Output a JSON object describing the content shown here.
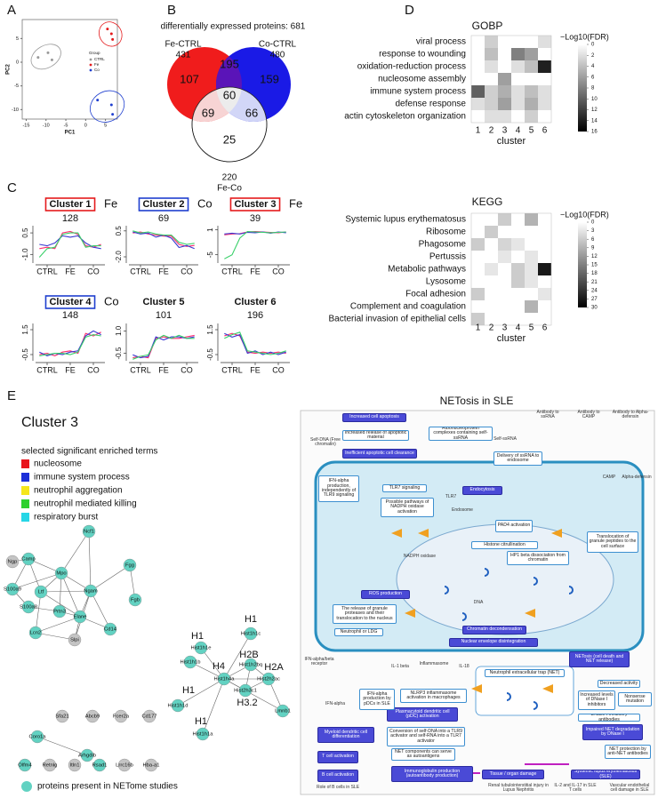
{
  "panels": [
    "A",
    "B",
    "C",
    "D",
    "E"
  ],
  "chart_data": [
    {
      "type": "scatter",
      "x_label": "PC1",
      "y_label": "PC2",
      "legend_title": "Group",
      "xlim": [
        -16,
        8
      ],
      "ylim": [
        -12,
        9
      ],
      "xticks": [
        -15,
        -10,
        -5,
        0,
        5
      ],
      "yticks": [
        -10,
        -5,
        0,
        5
      ],
      "series": [
        {
          "name": "CTRL",
          "color": "#999999",
          "x": [
            -12,
            -9.5,
            -8.5
          ],
          "y": [
            1,
            2,
            0.5
          ]
        },
        {
          "name": "Fe",
          "color": "#e41a1c",
          "x": [
            5.5,
            6.5,
            6.8
          ],
          "y": [
            7,
            6,
            4.8
          ]
        },
        {
          "name": "Co",
          "color": "#1f3fcf",
          "x": [
            3,
            6.5,
            6.8
          ],
          "y": [
            -8,
            -9,
            -11
          ]
        }
      ]
    },
    {
      "type": "venn",
      "title": "differentially expressed proteins: 681",
      "sets": [
        {
          "name": "Fe-CTRL",
          "total": 431,
          "color": "#f01c1c"
        },
        {
          "name": "Co-CTRL",
          "total": 480,
          "color": "#1a1ae6"
        },
        {
          "name": "Fe-Co",
          "total": 220,
          "color": "#ffffff"
        }
      ],
      "regions": [
        107,
        195,
        159,
        60,
        69,
        66,
        25
      ]
    },
    {
      "type": "line",
      "title": "Cluster 1",
      "tag": "Fe",
      "box_color": "#e41a1c",
      "count": 128,
      "categories": [
        null,
        "CTRL",
        null,
        null,
        "FE",
        null,
        null,
        "CO",
        null
      ],
      "ylim": [
        -1.6,
        1.0
      ],
      "yticks": [
        {
          "value": -1,
          "label": "-1.0"
        },
        0.5
      ],
      "series": [
        {
          "color": "#ff2d6f",
          "values": [
            -0.6,
            -0.5,
            -0.6,
            0.5,
            0.6,
            0.4,
            -0.4,
            -0.5,
            -0.3
          ]
        },
        {
          "color": "#3a3ad0",
          "values": [
            -0.3,
            -0.4,
            -0.2,
            0.3,
            0.2,
            0.3,
            -0.2,
            -0.5,
            -0.6
          ]
        },
        {
          "color": "#3ad06a",
          "values": [
            -1.2,
            -0.6,
            -0.5,
            0.4,
            0.5,
            0.5,
            -0.5,
            -0.4,
            -0.4
          ]
        }
      ]
    },
    {
      "type": "line",
      "title": "Cluster 2",
      "tag": "Co",
      "box_color": "#1f3fcf",
      "count": 69,
      "categories": [
        null,
        "CTRL",
        null,
        null,
        "FE",
        null,
        null,
        "CO",
        null
      ],
      "ylim": [
        -2.6,
        1.0
      ],
      "yticks": [
        0.5,
        {
          "value": -2,
          "label": "-2.0"
        }
      ],
      "series": [
        {
          "color": "#ff2d6f",
          "values": [
            0.3,
            0.4,
            0.2,
            0.1,
            0,
            0,
            -0.8,
            -1,
            -0.9
          ]
        },
        {
          "color": "#3a3ad0",
          "values": [
            0.4,
            0.2,
            0.3,
            -0.1,
            0.1,
            -0.2,
            -1.1,
            -0.9,
            -1.2
          ]
        },
        {
          "color": "#3ad06a",
          "values": [
            0.5,
            0.3,
            0.4,
            0.2,
            0.1,
            0.1,
            -0.6,
            -0.8,
            -0.7
          ]
        }
      ]
    },
    {
      "type": "line",
      "title": "Cluster 3",
      "tag": "Fe",
      "box_color": "#e41a1c",
      "count": 39,
      "categories": [
        null,
        "CTRL",
        null,
        null,
        "FE",
        null,
        null,
        "CO",
        null
      ],
      "ylim": [
        -7,
        2
      ],
      "yticks": [
        1,
        -5
      ],
      "series": [
        {
          "color": "#ff2d6f",
          "values": [
            -0.2,
            0,
            0.1,
            0.5,
            0.6,
            0.5,
            0.4,
            0.3,
            0.5
          ]
        },
        {
          "color": "#3a3ad0",
          "values": [
            0,
            0.2,
            0,
            0.4,
            0.3,
            0.5,
            0.2,
            0.5,
            0.3
          ]
        },
        {
          "color": "#3ad06a",
          "values": [
            -6,
            -5,
            -1,
            0.6,
            0.5,
            0.4,
            0.3,
            0.4,
            0.5
          ]
        }
      ]
    },
    {
      "type": "line",
      "title": "Cluster 4",
      "tag": "Co",
      "box_color": "#1f3fcf",
      "count": 148,
      "categories": [
        null,
        "CTRL",
        null,
        null,
        "FE",
        null,
        null,
        "CO",
        null
      ],
      "ylim": [
        -1,
        2
      ],
      "yticks": [
        1.5,
        -0.5
      ],
      "series": [
        {
          "color": "#ff2d6f",
          "values": [
            -0.5,
            -0.4,
            -0.6,
            -0.3,
            -0.2,
            -0.4,
            1.2,
            1.0,
            1.3
          ]
        },
        {
          "color": "#3a3ad0",
          "values": [
            -0.3,
            -0.6,
            -0.4,
            -0.5,
            -0.3,
            -0.2,
            1.0,
            1.4,
            1.1
          ]
        },
        {
          "color": "#3ad06a",
          "values": [
            -0.6,
            -0.5,
            -0.4,
            -0.4,
            -0.5,
            -0.3,
            0.9,
            1.1,
            1.0
          ]
        }
      ]
    },
    {
      "type": "line",
      "title": "Cluster 5",
      "count": 101,
      "categories": [
        null,
        "CTRL",
        null,
        null,
        "FE",
        null,
        null,
        "CO",
        null
      ],
      "ylim": [
        -1,
        1.5
      ],
      "yticks": [
        {
          "value": 1,
          "label": "1.0"
        },
        -0.5
      ],
      "series": [
        {
          "color": "#ff2d6f",
          "values": [
            -0.8,
            -0.7,
            -0.8,
            0.5,
            0.6,
            0.5,
            0.5,
            0.6,
            0.7
          ]
        },
        {
          "color": "#3a3ad0",
          "values": [
            -0.6,
            -0.8,
            -0.7,
            0.6,
            0.4,
            0.6,
            0.6,
            0.5,
            0.6
          ]
        },
        {
          "color": "#3ad06a",
          "values": [
            -0.9,
            -0.7,
            -0.6,
            0.4,
            0.7,
            0.5,
            0.7,
            0.5,
            0.5
          ]
        }
      ]
    },
    {
      "type": "line",
      "title": "Cluster 6",
      "count": 196,
      "categories": [
        null,
        "CTRL",
        null,
        null,
        "FE",
        null,
        null,
        "CO",
        null
      ],
      "ylim": [
        -1,
        2
      ],
      "yticks": [
        1.5,
        -0.5
      ],
      "series": [
        {
          "color": "#ff2d6f",
          "values": [
            1.0,
            1.2,
            1.0,
            -0.3,
            -0.4,
            -0.3,
            -0.4,
            -0.3,
            -0.4
          ]
        },
        {
          "color": "#3a3ad0",
          "values": [
            1.2,
            0.9,
            1.1,
            -0.4,
            -0.2,
            -0.5,
            -0.3,
            -0.5,
            -0.3
          ]
        },
        {
          "color": "#3ad06a",
          "values": [
            0.8,
            1.1,
            1.3,
            -0.2,
            -0.3,
            -0.4,
            -0.5,
            -0.4,
            -0.2
          ]
        }
      ]
    },
    {
      "type": "heatmap",
      "title": "GOBP",
      "x_label": "cluster",
      "colorbar_title": "−Log10(FDR)",
      "columns": [
        1,
        2,
        3,
        4,
        5,
        6
      ],
      "rows": [
        "viral process",
        "response to wounding",
        "oxidation-reduction process",
        "nucleosome assembly",
        "immune system process",
        "defense response",
        "actin cytoskeleton organization"
      ],
      "values": [
        [
          0,
          3,
          0,
          0,
          0,
          2
        ],
        [
          0,
          4,
          0,
          8,
          6,
          0
        ],
        [
          0,
          2,
          0,
          2,
          4,
          14
        ],
        [
          0,
          0,
          6,
          0,
          0,
          0
        ],
        [
          10,
          3,
          5,
          2,
          4,
          2
        ],
        [
          2,
          3,
          6,
          2,
          5,
          2
        ],
        [
          0,
          2,
          2,
          0,
          3,
          0
        ]
      ],
      "zlim": [
        0,
        16
      ],
      "zticks": [
        0,
        2,
        4,
        6,
        8,
        10,
        12,
        14,
        16
      ]
    },
    {
      "type": "heatmap",
      "title": "KEGG",
      "x_label": "cluster",
      "colorbar_title": "−Log10(FDR)",
      "columns": [
        1,
        2,
        3,
        4,
        5,
        6
      ],
      "rows": [
        "Systemic lupus erythematosus",
        "Ribosome",
        "Phagosome",
        "Pertussis",
        "Metabolic pathways",
        "Lysosome",
        "Focal adhesion",
        "Complement and coagulation",
        "Bacterial invasion of epithelial cells"
      ],
      "values": [
        [
          0,
          0,
          6,
          0,
          9,
          0
        ],
        [
          0,
          6,
          0,
          0,
          0,
          0
        ],
        [
          6,
          0,
          5,
          3,
          0,
          0
        ],
        [
          0,
          0,
          3,
          0,
          3,
          0
        ],
        [
          0,
          3,
          0,
          6,
          3,
          27
        ],
        [
          0,
          0,
          0,
          6,
          3,
          0
        ],
        [
          6,
          0,
          0,
          0,
          0,
          3
        ],
        [
          0,
          0,
          0,
          0,
          9,
          0
        ],
        [
          6,
          0,
          0,
          0,
          0,
          0
        ]
      ],
      "zlim": [
        0,
        30
      ],
      "zticks": [
        0,
        3,
        6,
        9,
        12,
        15,
        18,
        21,
        24,
        27,
        30
      ]
    }
  ],
  "network": {
    "title": "Cluster 3",
    "legend_title": "selected significant enriched terms",
    "terms": [
      {
        "name": "nucleosome",
        "color": "#e8141c"
      },
      {
        "name": "immune system process",
        "color": "#1c2fd8"
      },
      {
        "name": "neutrophil aggregation",
        "color": "#f5e61c"
      },
      {
        "name": "neutrophil mediated killing",
        "color": "#2fd02f"
      },
      {
        "name": "respiratory burst",
        "color": "#27d6e6"
      }
    ],
    "nodes": [
      "Ngp",
      "Camp",
      "Ncf1",
      "S100a9",
      "Mpo",
      "Ltf",
      "Ngam",
      "Fgg",
      "S100a8",
      "Prtn3",
      "Elane",
      "Fgb",
      "Lcn2",
      "Slpi",
      "Cd14",
      "Hist1h1c",
      "Hist1h1e",
      "Hist1h1b",
      "Hist1h2bq",
      "Hist2h2ac",
      "Hist1h4a",
      "Hist2h3c1",
      "Hist1h1d",
      "Hist1h1a",
      "Lmnb1",
      "Coro1a",
      "Arhgdib",
      "Sfa21",
      "Abcb9",
      "Fcer2a",
      "Cd177",
      "Olfm4",
      "Retnlg",
      "Itln1",
      "Rsad1",
      "Lrrc16b",
      "Hba-a1"
    ],
    "netome": [
      false,
      true,
      true,
      true,
      true,
      true,
      true,
      true,
      true,
      true,
      true,
      true,
      true,
      false,
      true,
      true,
      true,
      true,
      true,
      true,
      true,
      true,
      true,
      true,
      true,
      true,
      true,
      false,
      false,
      false,
      false,
      true,
      false,
      false,
      true,
      false,
      false
    ],
    "netome_color": "#62d2c2",
    "other_color": "#c4c4c4",
    "edges": [
      [
        0,
        1
      ],
      [
        1,
        4
      ],
      [
        1,
        5
      ],
      [
        1,
        3
      ],
      [
        3,
        8
      ],
      [
        3,
        4
      ],
      [
        4,
        5
      ],
      [
        4,
        6
      ],
      [
        4,
        10
      ],
      [
        4,
        9
      ],
      [
        5,
        6
      ],
      [
        5,
        12
      ],
      [
        5,
        10
      ],
      [
        6,
        2
      ],
      [
        6,
        10
      ],
      [
        6,
        14
      ],
      [
        6,
        7
      ],
      [
        7,
        11
      ],
      [
        8,
        9
      ],
      [
        9,
        10
      ],
      [
        10,
        12
      ],
      [
        10,
        13
      ],
      [
        10,
        14
      ],
      [
        12,
        13
      ],
      [
        13,
        6
      ],
      [
        4,
        2
      ],
      [
        15,
        20
      ],
      [
        16,
        20
      ],
      [
        17,
        20
      ],
      [
        18,
        20
      ],
      [
        19,
        20
      ],
      [
        21,
        20
      ],
      [
        22,
        20
      ],
      [
        23,
        20
      ],
      [
        18,
        19
      ],
      [
        18,
        21
      ],
      [
        19,
        21
      ],
      [
        20,
        24
      ],
      [
        19,
        24
      ],
      [
        25,
        26
      ]
    ],
    "annotations": [
      "H1",
      "H1",
      "H2B",
      "H2A",
      "H4",
      "H3.2",
      "H1",
      "H1"
    ],
    "footnote": "proteins present in NETome studies"
  },
  "pathway": {
    "title": "NETosis in SLE",
    "filled_boxes": [
      "Increased cell apoptosis",
      "Inefficient apoptotic cell clearance",
      "Endocytosis",
      "ROS production",
      "Chromatin decondensation",
      "Nuclear envelope disintegration",
      "NETosis (cell death and NET release)",
      "Plasmacytoid dendritic cell (pDC) activation",
      "Myeloid dendritic cell differentiation",
      "T cell activation",
      "B cell activation",
      "Immunoglobulin production (autoantibody production)",
      "Impaired NET degradation by DNase I",
      "Tissue / organ damage",
      "Systemic lupus erythematosus (SLE)"
    ],
    "outline_boxes": [
      "Increased release of apoptotic material",
      "Ribonucleoprotein complexes containing self-ssRNA",
      "Delivery of ssRNA to endosome",
      "TLR7 signaling",
      "Possible pathways of NADPH oxidase activation",
      "PAD4 activation",
      "Histone citrullination",
      "HP1 beta dissociation from chromatin",
      "The release of granule proteases and their translocation to the nucleus",
      "Neutrophil or LDG",
      "IFN-alpha production, independently of TLR9 signaling",
      "Translocation of granule peptides to the cell surface",
      "NLRP3 inflammasome activation in macrophages",
      "IFN-alpha production by pDCs in SLE",
      "Conversion of self-DNA into a TLR9 activator and self-RNA into a TLR7 activator",
      "NET components can serve as autoantigens",
      "Neutrophil extracellular trap (NET)",
      "Decreased activity",
      "Increased levels of DNase I inhibitors",
      "Nonsense mutation",
      "DNase I inhibitory antibodies",
      "NET protection by anti-NET antibodies"
    ],
    "labels": [
      "Self-DNA (Free chromatin)",
      "Self-ssRNA",
      "Antibody to ssRNA",
      "Antibody to CAMP",
      "Antibody to Alpha-defensin",
      "Endosome",
      "TLR7",
      "CAMP",
      "Alpha-defensin",
      "NADPH oxidase",
      "DNA",
      "Role of B cells in SLE",
      "Renal tubulointerstitial injury in Lupus Nephritis",
      "IL-2 and IL-17 in SLE T cells",
      "Vascular endothelial cell damage in SLE",
      "IFN-alpha/beta receptor",
      "Inflammasome",
      "IL-1 beta",
      "IL-18",
      "IFN-alpha"
    ]
  }
}
